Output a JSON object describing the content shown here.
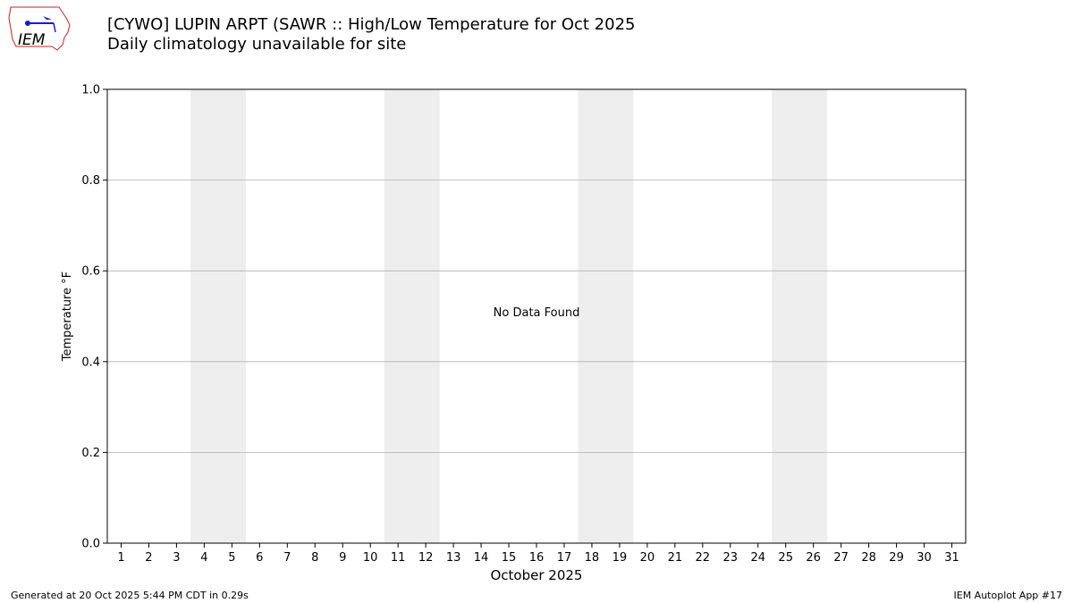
{
  "header": {
    "title_line1": "[CYWO] LUPIN ARPT (SAWR :: High/Low Temperature for Oct 2025",
    "title_line2": "Daily climatology unavailable for site",
    "logo_text": "IEM"
  },
  "footer": {
    "generated": "Generated at 20 Oct 2025 5:44 PM CDT in 0.29s",
    "app": "IEM Autoplot App #17"
  },
  "colors": {
    "weekend_band": "#eeeeee",
    "grid": "#b0b0b0",
    "logo_red": "#cc2222",
    "logo_blue": "#1a1acc"
  },
  "chart_data": {
    "type": "bar",
    "xlabel": "October 2025",
    "ylabel": "Temperature °F",
    "ylim": [
      0.0,
      1.0
    ],
    "yticks": [
      "0.0",
      "0.2",
      "0.4",
      "0.6",
      "0.8",
      "1.0"
    ],
    "xlim": [
      0.5,
      31.5
    ],
    "categories": [
      "1",
      "2",
      "3",
      "4",
      "5",
      "6",
      "7",
      "8",
      "9",
      "10",
      "11",
      "12",
      "13",
      "14",
      "15",
      "16",
      "17",
      "18",
      "19",
      "20",
      "21",
      "22",
      "23",
      "24",
      "25",
      "26",
      "27",
      "28",
      "29",
      "30",
      "31"
    ],
    "weekend_bands": [
      [
        3.5,
        5.5
      ],
      [
        10.5,
        12.5
      ],
      [
        17.5,
        19.5
      ],
      [
        24.5,
        26.5
      ]
    ],
    "series": [],
    "annotation": "No Data Found",
    "grid": "horizontal"
  }
}
